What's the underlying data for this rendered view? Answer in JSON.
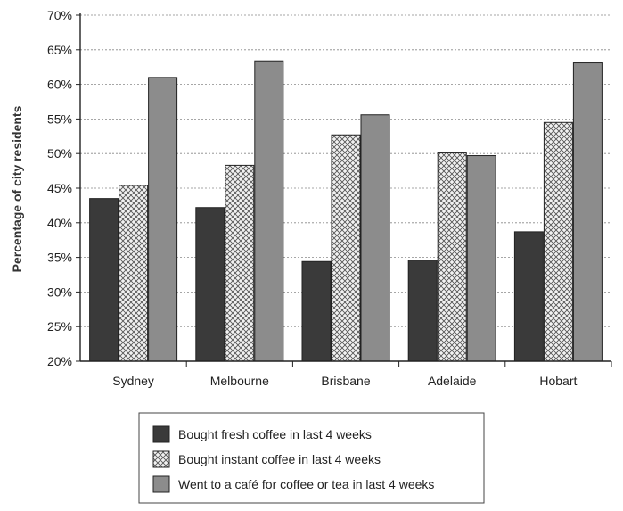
{
  "chart_data": {
    "type": "bar",
    "title": "",
    "xlabel": "",
    "ylabel": "Percentage of city residents",
    "ylim": [
      20,
      70
    ],
    "yticks": [
      20,
      25,
      30,
      35,
      40,
      45,
      50,
      55,
      60,
      65,
      70
    ],
    "ytick_format": "%",
    "grid": "horizontal dotted",
    "legend_placement": "bottom",
    "categories": [
      "Sydney",
      "Melbourne",
      "Brisbane",
      "Adelaide",
      "Hobart"
    ],
    "series": [
      {
        "name": "Bought fresh coffee in last 4 weeks",
        "values": [
          43.5,
          42.2,
          34.4,
          34.6,
          38.7
        ],
        "fill": "dark",
        "color": "#3a3a3a"
      },
      {
        "name": "Bought instant coffee in last 4 weeks",
        "values": [
          45.4,
          48.3,
          52.7,
          50.1,
          54.5
        ],
        "fill": "crosshatch",
        "color": "#e0e0e0"
      },
      {
        "name": "Went to a café for coffee or tea in last 4 weeks",
        "values": [
          61.0,
          63.4,
          55.6,
          49.7,
          63.1
        ],
        "fill": "grey",
        "color": "#8c8c8c"
      }
    ]
  }
}
